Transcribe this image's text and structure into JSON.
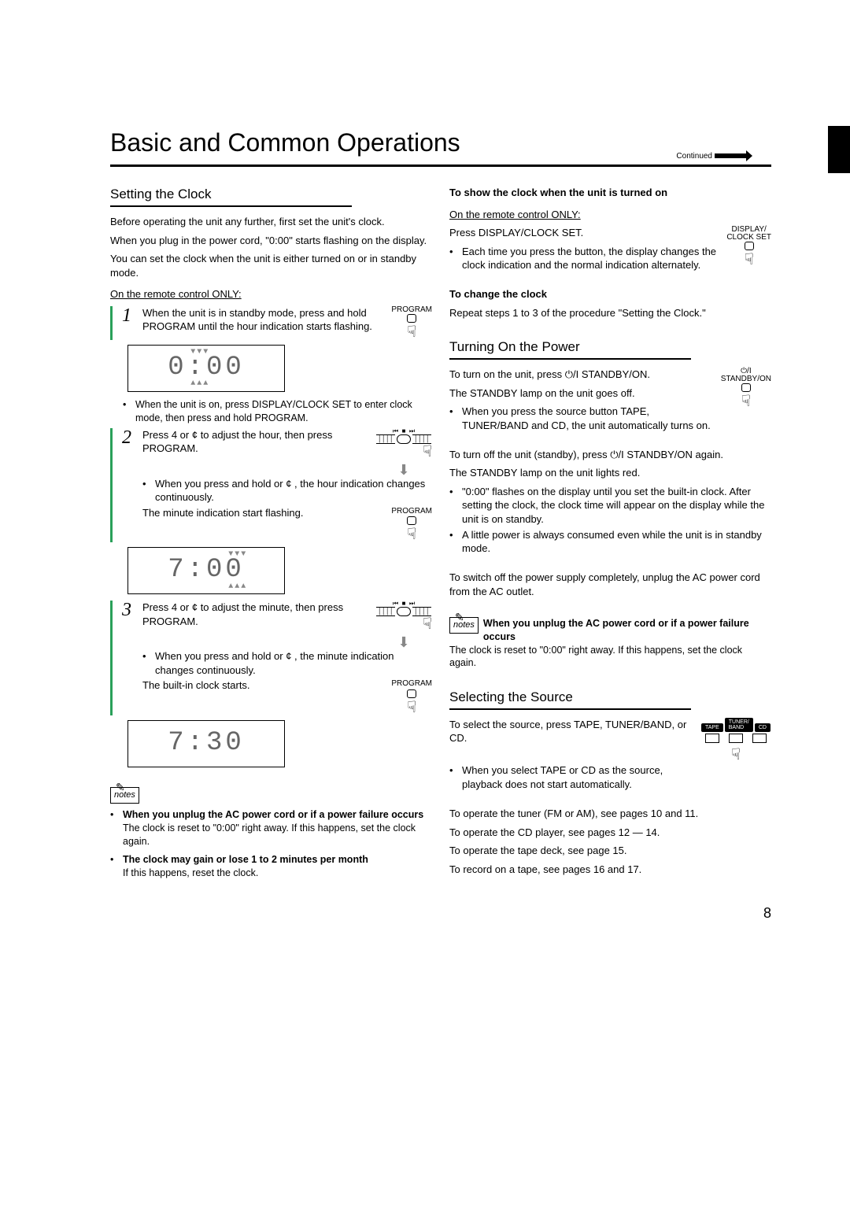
{
  "page": {
    "title": "Basic and Common Operations",
    "continued": "Continued",
    "number": "8"
  },
  "left": {
    "section1_title": "Setting the Clock",
    "intro1": "Before operating the unit any further, first set the unit's clock.",
    "intro2": "When you plug in the power cord, \"0:00\" starts flashing on the display.",
    "intro3": "You can set the clock when the unit is either turned on or in standby mode.",
    "subhead1": "On the remote control ONLY:",
    "step1_main": "When the unit is in standby mode, press and hold PROGRAM until the hour indication starts flashing.",
    "step1_btn_label": "PROGRAM",
    "step1_bullet": "When the unit is on, press DISPLAY/CLOCK SET to enter clock mode, then press and hold PROGRAM.",
    "lcd1": "0:00",
    "step2_main": "Press 4   or ¢   to adjust the hour, then press PROGRAM.",
    "step2_b1": "When you press and hold   or ¢   , the hour indication changes continuously.",
    "step2_tail": "The minute indication start flashing.",
    "lcd2": "7:00",
    "step3_main": "Press 4   or ¢   to adjust the minute, then press PROGRAM.",
    "step3_b1": "When you press and hold   or ¢   , the minute indication changes continuously.",
    "step3_tail": "The built-in clock starts.",
    "lcd3": "7:30",
    "notes_label": "notes",
    "note1_head": "When you unplug the AC power cord or if a power failure occurs",
    "note1_body": "The clock is reset to \"0:00\" right away. If this happens, set the clock again.",
    "note2_head": "The clock may gain or lose 1 to 2 minutes per month",
    "note2_body": "If this happens, reset the clock."
  },
  "right": {
    "show_head": "To show the clock when the unit is turned on",
    "show_sub": "On the remote control ONLY:",
    "show_line": "Press DISPLAY/CLOCK SET.",
    "show_bullet": "Each time you press the button, the display changes the clock indication and the normal indication alternately.",
    "show_btn": "DISPLAY/\nCLOCK SET",
    "change_head": "To change the clock",
    "change_body": "Repeat steps 1 to 3 of the procedure \"Setting the Clock.\"",
    "sec2_title": "Turning On the Power",
    "pwr_on1": "To turn on the unit, press ⏻/I STANDBY/ON.",
    "pwr_on2": "The STANDBY lamp on the unit goes off.",
    "pwr_on_b": "When you press the source button TAPE, TUNER/BAND and CD, the unit automatically turns on.",
    "pwr_btn": "STANDBY/ON",
    "pwr_sym": "⏻/I",
    "pwr_off1": "To turn off the unit (standby), press ⏻/I STANDBY/ON again.",
    "pwr_off2": "The STANDBY lamp on the unit lights red.",
    "pwr_off_b1": "\"0:00\" flashes on the display until you set the built-in clock. After setting the clock, the clock time will appear on the display while the unit is on standby.",
    "pwr_off_b2": "A little power is always consumed even while the unit is in standby mode.",
    "pwr_switch": "To switch off the power supply completely, unplug the AC power cord from the AC outlet.",
    "note_head": "When you unplug the AC power cord or if a power failure occurs",
    "note_body": "The clock is reset to \"0:00\" right away. If this happens, set the clock again.",
    "sec3_title": "Selecting the Source",
    "src_line": "To select the source, press TAPE, TUNER/BAND, or CD.",
    "src_b": "When you select TAPE or CD as the source, playback does not start automatically.",
    "src_btn1": "TAPE",
    "src_btn2": "TUNER/\nBAND",
    "src_btn3": "CD",
    "ref1": "To operate the tuner (FM or AM), see pages 10 and 11.",
    "ref2": "To operate the CD player, see pages 12 — 14.",
    "ref3": "To operate the tape deck, see page 15.",
    "ref4": "To record on a tape, see pages 16 and 17."
  }
}
